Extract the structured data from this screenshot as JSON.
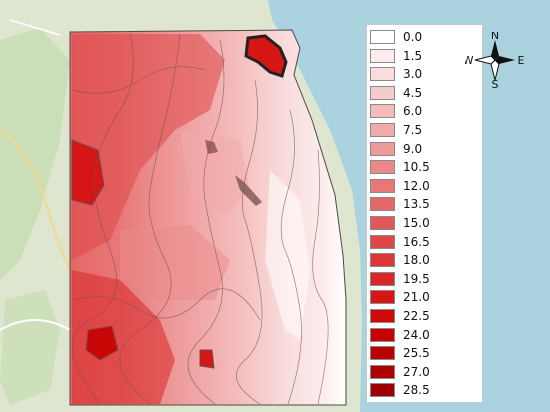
{
  "legend": {
    "labels": [
      "0.0",
      "1.5",
      "3.0",
      "4.5",
      "6.0",
      "7.5",
      "9.0",
      "10.5",
      "12.0",
      "13.5",
      "15.0",
      "16.5",
      "18.0",
      "19.5",
      "21.0",
      "22.5",
      "24.0",
      "25.5",
      "27.0",
      "28.5"
    ],
    "colors": [
      "#ffffff",
      "#fcecec",
      "#f9dcdc",
      "#f7cbcb",
      "#f4bbbb",
      "#f1aaaa",
      "#ee9a9a",
      "#eb8989",
      "#e87878",
      "#e56868",
      "#e25757",
      "#df4747",
      "#dc3636",
      "#d92626",
      "#d61515",
      "#d00a0a",
      "#c80000",
      "#bb0000",
      "#ad0000",
      "#9e0000"
    ]
  },
  "compass": {
    "n": "N",
    "s": "S",
    "e": "E",
    "w": "W"
  },
  "colors": {
    "sea": "#aad3df",
    "land": "#dfe6cf",
    "vegetation": "#c4ddb0",
    "contour": "#6e5050"
  }
}
